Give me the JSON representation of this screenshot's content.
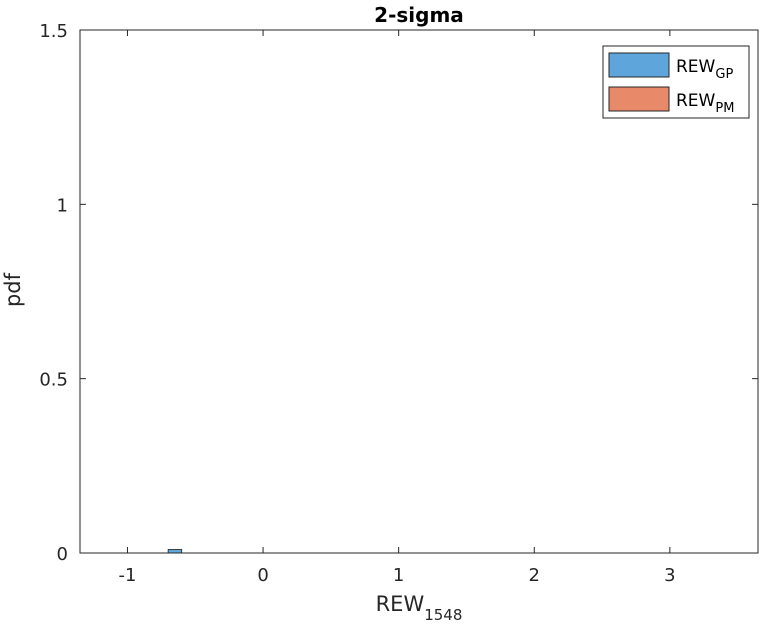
{
  "chart_data": {
    "type": "bar",
    "subtype": "overlapping-histogram",
    "title": "2-sigma",
    "xlabel": {
      "main": "REW",
      "sub": "1548"
    },
    "ylabel": "pdf",
    "xlim": [
      -1.35,
      3.65
    ],
    "ylim": [
      0,
      1.5
    ],
    "xticks": [
      -1,
      0,
      1,
      2,
      3
    ],
    "xtick_labels": [
      "-1",
      "0",
      "1",
      "2",
      "3"
    ],
    "yticks": [
      0,
      0.5,
      1,
      1.5
    ],
    "ytick_labels": [
      "0",
      "0.5",
      "1",
      "1.5"
    ],
    "grid": false,
    "legend_position": "top-right",
    "series": [
      {
        "name": "REW",
        "name_sub": "GP",
        "color": "#5DA5DA",
        "opacity": 0.97,
        "bin_width": 0.1,
        "bin_edges_start": -1.2,
        "values": [
          0.0,
          0.0,
          0.0,
          0.0,
          0.0,
          0.01,
          0.0,
          0.0,
          0.0,
          0.0,
          0.0,
          0.0,
          0.0,
          0.0,
          0.0,
          0.0,
          0.0,
          0.0,
          0.0,
          0.0,
          0.0,
          0.0,
          0.0,
          0.0,
          0.0,
          0.0,
          0.0,
          0.0,
          0.0,
          0.0,
          0.0,
          0.0,
          0.0,
          0.0,
          0.0,
          0.0,
          0.0,
          0.0,
          0.0,
          0.0,
          0.0,
          0.0,
          0.0,
          0.0,
          0.0,
          0.0,
          0.0
        ]
      }
    ]
  },
  "legend": {
    "entries": [
      {
        "main": "REW",
        "sub": "GP",
        "color": "#5DA5DA"
      },
      {
        "main": "REW",
        "sub": "PM",
        "color": "#E8896A"
      }
    ]
  }
}
